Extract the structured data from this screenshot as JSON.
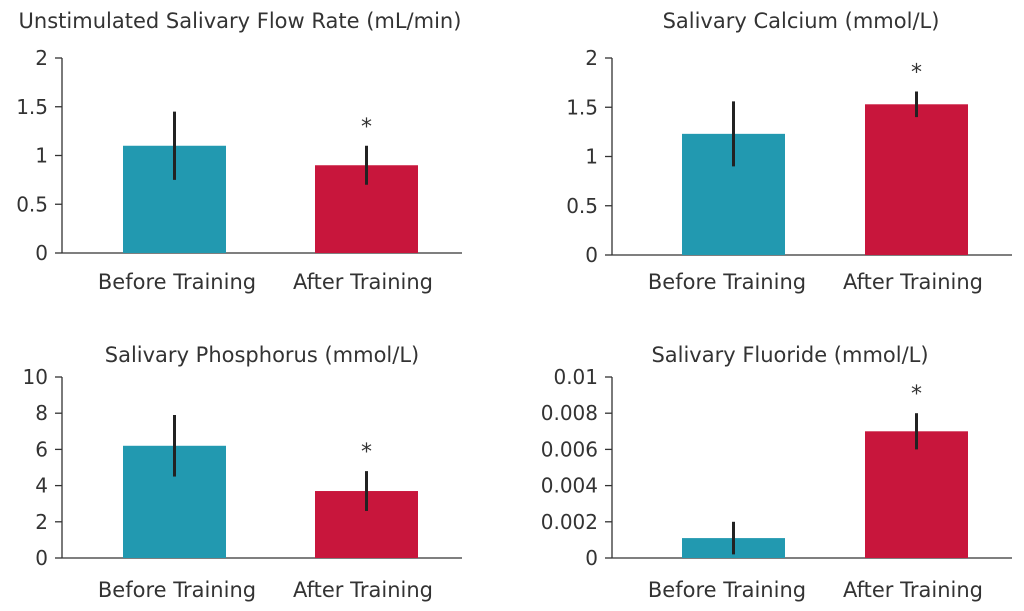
{
  "colors": {
    "before": "#2299b0",
    "after": "#c8163c",
    "axis": "#333333",
    "error_bar": "#222222"
  },
  "chart_data": [
    {
      "type": "bar",
      "title": "Unstimulated Salivary Flow Rate (mL/min)",
      "categories": [
        "Before Training",
        "After Training"
      ],
      "values": [
        1.1,
        0.9
      ],
      "error": [
        0.35,
        0.2
      ],
      "significance": [
        "",
        "*"
      ],
      "ylim": [
        0,
        2
      ],
      "yticks": [
        "0",
        "0.5",
        "1",
        "1.5",
        "2"
      ],
      "xlabel": "",
      "ylabel": ""
    },
    {
      "type": "bar",
      "title": "Salivary Calcium (mmol/L)",
      "categories": [
        "Before Training",
        "After Training"
      ],
      "values": [
        1.23,
        1.53
      ],
      "error": [
        0.33,
        0.13
      ],
      "significance": [
        "",
        "*"
      ],
      "ylim": [
        0,
        2
      ],
      "yticks": [
        "0",
        "0.5",
        "1",
        "1.5",
        "2"
      ],
      "xlabel": "",
      "ylabel": ""
    },
    {
      "type": "bar",
      "title": "Salivary Phosphorus (mmol/L)",
      "categories": [
        "Before Training",
        "After Training"
      ],
      "values": [
        6.2,
        3.7
      ],
      "error": [
        1.7,
        1.1
      ],
      "significance": [
        "",
        "*"
      ],
      "ylim": [
        0,
        10
      ],
      "yticks": [
        "0",
        "2",
        "4",
        "6",
        "8",
        "10"
      ],
      "xlabel": "",
      "ylabel": ""
    },
    {
      "type": "bar",
      "title": "Salivary Fluoride (mmol/L)",
      "categories": [
        "Before Training",
        "After Training"
      ],
      "values": [
        0.0011,
        0.007
      ],
      "error": [
        0.0009,
        0.001
      ],
      "significance": [
        "",
        "*"
      ],
      "ylim": [
        0,
        0.01
      ],
      "yticks": [
        "0",
        "0.002",
        "0.004",
        "0.006",
        "0.008",
        "0.01"
      ],
      "xlabel": "",
      "ylabel": ""
    }
  ]
}
